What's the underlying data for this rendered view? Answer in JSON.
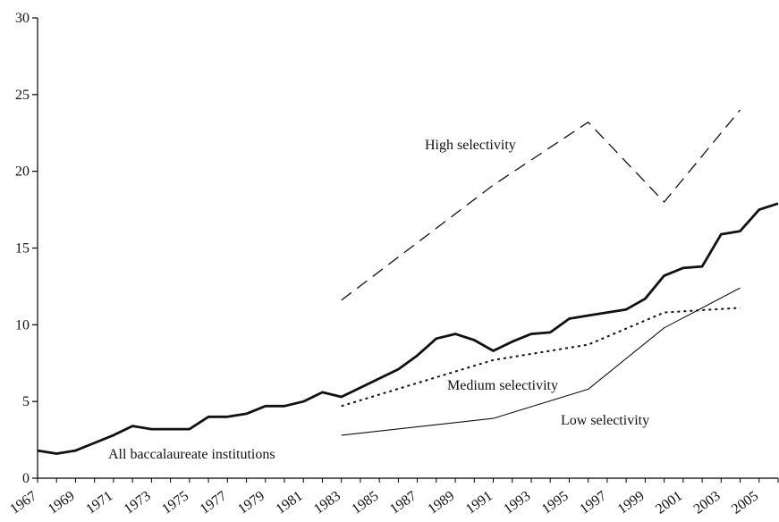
{
  "chart_data": {
    "type": "line",
    "title": "",
    "xlabel": "",
    "ylabel": "",
    "xlim": [
      1967,
      2006
    ],
    "ylim": [
      0,
      30
    ],
    "x_ticks": [
      1967,
      1969,
      1971,
      1973,
      1975,
      1977,
      1979,
      1981,
      1983,
      1985,
      1987,
      1989,
      1991,
      1993,
      1995,
      1997,
      1999,
      2001,
      2003,
      2005
    ],
    "y_ticks": [
      0,
      5,
      10,
      15,
      20,
      25,
      30
    ],
    "grid": false,
    "legend": "none (series labeled inline)",
    "series": [
      {
        "name": "All baccalaureate institutions",
        "style": "thick-solid",
        "x": [
          1967,
          1968,
          1969,
          1970,
          1971,
          1972,
          1973,
          1974,
          1975,
          1976,
          1977,
          1978,
          1979,
          1980,
          1981,
          1982,
          1983,
          1984,
          1985,
          1986,
          1987,
          1988,
          1989,
          1990,
          1991,
          1992,
          1993,
          1994,
          1995,
          1996,
          1997,
          1998,
          1999,
          2000,
          2001,
          2002,
          2003,
          2004,
          2005,
          2006
        ],
        "y": [
          1.8,
          1.6,
          1.8,
          2.3,
          2.8,
          3.4,
          3.2,
          3.2,
          3.2,
          4.0,
          4.0,
          4.2,
          4.7,
          4.7,
          5.0,
          5.6,
          5.3,
          5.9,
          6.5,
          7.1,
          8.0,
          9.1,
          9.4,
          9.0,
          8.3,
          8.9,
          9.4,
          9.5,
          10.4,
          10.6,
          10.8,
          11.0,
          11.7,
          13.2,
          13.7,
          13.8,
          15.9,
          16.1,
          17.5,
          17.9
        ]
      },
      {
        "name": "High selectivity",
        "style": "dashed",
        "x": [
          1983,
          1991,
          1996,
          2000,
          2004
        ],
        "y": [
          11.6,
          19.1,
          23.2,
          18.0,
          24.0
        ]
      },
      {
        "name": "Medium selectivity",
        "style": "dotted",
        "x": [
          1983,
          1991,
          1996,
          2000,
          2004
        ],
        "y": [
          4.7,
          7.7,
          8.7,
          10.8,
          11.1
        ]
      },
      {
        "name": "Low selectivity",
        "style": "thin-solid",
        "x": [
          1983,
          1991,
          1996,
          2000,
          2004
        ],
        "y": [
          2.8,
          3.9,
          5.8,
          9.8,
          12.4
        ]
      }
    ]
  }
}
